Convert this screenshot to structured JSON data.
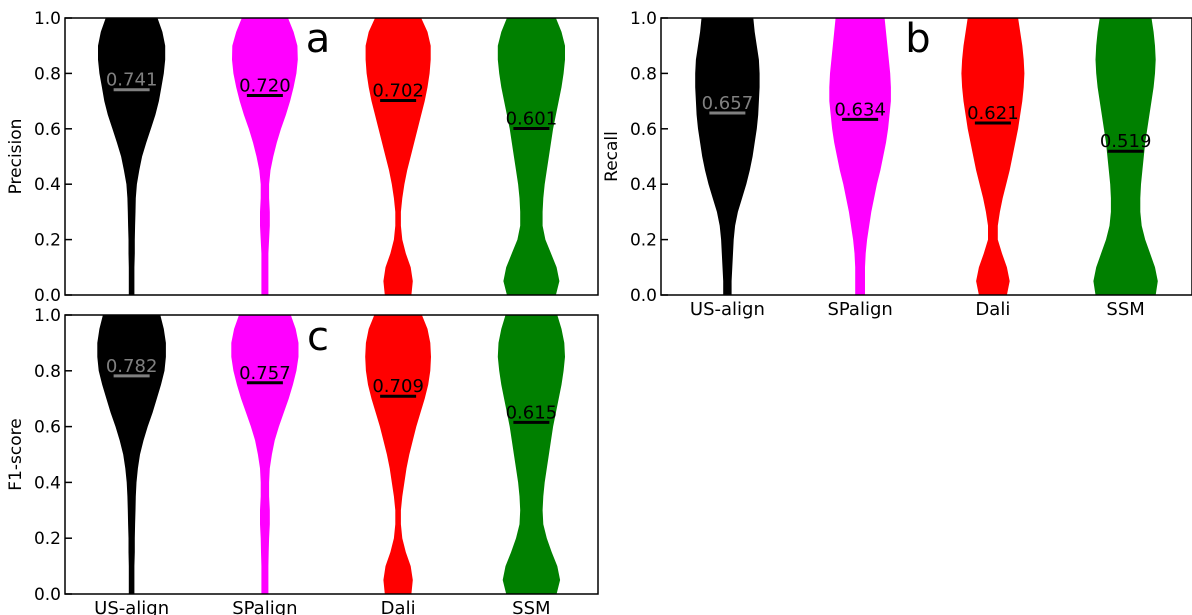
{
  "chart_data": [
    {
      "panel": "a",
      "type": "violin",
      "ylabel": "Precision",
      "ylim": [
        0,
        1
      ],
      "yticks": [
        "0.0",
        "0.2",
        "0.4",
        "0.6",
        "0.8",
        "1.0"
      ],
      "categories": [
        "US-align",
        "SPalign",
        "Dali",
        "SSM"
      ],
      "show_xticklabels": false,
      "colors": [
        "#000000",
        "#ff00ff",
        "#ff0000",
        "#008000"
      ],
      "means": [
        0.741,
        0.72,
        0.702,
        0.601
      ],
      "mean_labels": [
        "0.741",
        "0.720",
        "0.702",
        "0.601"
      ],
      "mean_label_colors": [
        "#808080",
        "#000000",
        "#000000",
        "#000000"
      ],
      "mean_line_colors": [
        "#808080",
        "#000000",
        "#000000",
        "#000000"
      ],
      "profile_y": [
        0.0,
        0.05,
        0.1,
        0.15,
        0.2,
        0.25,
        0.3,
        0.35,
        0.4,
        0.45,
        0.5,
        0.55,
        0.6,
        0.65,
        0.7,
        0.75,
        0.8,
        0.85,
        0.9,
        0.95,
        1.0
      ],
      "violin_widths": [
        [
          0.08,
          0.08,
          0.08,
          0.09,
          0.09,
          0.1,
          0.11,
          0.12,
          0.15,
          0.22,
          0.3,
          0.42,
          0.55,
          0.68,
          0.78,
          0.85,
          0.92,
          0.96,
          0.96,
          0.88,
          0.74
        ],
        [
          0.1,
          0.1,
          0.1,
          0.1,
          0.12,
          0.14,
          0.14,
          0.12,
          0.12,
          0.16,
          0.24,
          0.34,
          0.46,
          0.6,
          0.72,
          0.82,
          0.9,
          0.94,
          0.93,
          0.82,
          0.66
        ],
        [
          0.38,
          0.42,
          0.36,
          0.22,
          0.12,
          0.08,
          0.08,
          0.12,
          0.18,
          0.26,
          0.36,
          0.46,
          0.56,
          0.66,
          0.76,
          0.84,
          0.9,
          0.93,
          0.93,
          0.84,
          0.66
        ],
        [
          0.7,
          0.8,
          0.72,
          0.56,
          0.4,
          0.32,
          0.32,
          0.34,
          0.38,
          0.44,
          0.5,
          0.56,
          0.62,
          0.7,
          0.78,
          0.86,
          0.92,
          0.96,
          0.96,
          0.86,
          0.7
        ]
      ]
    },
    {
      "panel": "b",
      "type": "violin",
      "ylabel": "Recall",
      "ylim": [
        0,
        1
      ],
      "yticks": [
        "0.0",
        "0.2",
        "0.4",
        "0.6",
        "0.8",
        "1.0"
      ],
      "categories": [
        "US-align",
        "SPalign",
        "Dali",
        "SSM"
      ],
      "show_xticklabels": true,
      "colors": [
        "#000000",
        "#ff00ff",
        "#ff0000",
        "#008000"
      ],
      "means": [
        0.657,
        0.634,
        0.621,
        0.519
      ],
      "mean_labels": [
        "0.657",
        "0.634",
        "0.621",
        "0.519"
      ],
      "mean_label_colors": [
        "#808080",
        "#000000",
        "#000000",
        "#000000"
      ],
      "mean_line_colors": [
        "#808080",
        "#000000",
        "#000000",
        "#000000"
      ],
      "profile_y": [
        0.0,
        0.05,
        0.1,
        0.15,
        0.2,
        0.25,
        0.3,
        0.35,
        0.4,
        0.45,
        0.5,
        0.55,
        0.6,
        0.65,
        0.7,
        0.75,
        0.8,
        0.85,
        0.9,
        0.95,
        1.0
      ],
      "violin_widths": [
        [
          0.12,
          0.12,
          0.14,
          0.16,
          0.18,
          0.22,
          0.3,
          0.42,
          0.54,
          0.64,
          0.72,
          0.78,
          0.84,
          0.88,
          0.9,
          0.92,
          0.92,
          0.9,
          0.84,
          0.78,
          0.74
        ],
        [
          0.14,
          0.14,
          0.14,
          0.16,
          0.2,
          0.26,
          0.32,
          0.4,
          0.48,
          0.58,
          0.66,
          0.74,
          0.8,
          0.84,
          0.88,
          0.88,
          0.86,
          0.82,
          0.78,
          0.74,
          0.7
        ],
        [
          0.4,
          0.48,
          0.4,
          0.26,
          0.14,
          0.14,
          0.2,
          0.28,
          0.38,
          0.48,
          0.56,
          0.64,
          0.72,
          0.78,
          0.84,
          0.88,
          0.9,
          0.88,
          0.84,
          0.78,
          0.72
        ],
        [
          0.86,
          0.92,
          0.84,
          0.7,
          0.56,
          0.46,
          0.42,
          0.42,
          0.44,
          0.48,
          0.52,
          0.56,
          0.62,
          0.68,
          0.74,
          0.8,
          0.84,
          0.86,
          0.84,
          0.8,
          0.74
        ]
      ]
    },
    {
      "panel": "c",
      "type": "violin",
      "ylabel": "F1-score",
      "ylim": [
        0,
        1
      ],
      "yticks": [
        "0.0",
        "0.2",
        "0.4",
        "0.6",
        "0.8",
        "1.0"
      ],
      "categories": [
        "US-align",
        "SPalign",
        "Dali",
        "SSM"
      ],
      "show_xticklabels": true,
      "colors": [
        "#000000",
        "#ff00ff",
        "#ff0000",
        "#008000"
      ],
      "means": [
        0.782,
        0.757,
        0.709,
        0.615
      ],
      "mean_labels": [
        "0.782",
        "0.757",
        "0.709",
        "0.615"
      ],
      "mean_label_colors": [
        "#808080",
        "#000000",
        "#000000",
        "#000000"
      ],
      "mean_line_colors": [
        "#808080",
        "#000000",
        "#000000",
        "#000000"
      ],
      "profile_y": [
        0.0,
        0.05,
        0.1,
        0.15,
        0.2,
        0.25,
        0.3,
        0.35,
        0.4,
        0.45,
        0.5,
        0.55,
        0.6,
        0.65,
        0.7,
        0.75,
        0.8,
        0.85,
        0.9,
        0.95,
        1.0
      ],
      "violin_widths": [
        [
          0.08,
          0.08,
          0.08,
          0.09,
          0.09,
          0.1,
          0.11,
          0.12,
          0.14,
          0.18,
          0.24,
          0.34,
          0.46,
          0.6,
          0.72,
          0.84,
          0.94,
          0.98,
          0.98,
          0.92,
          0.82
        ],
        [
          0.1,
          0.1,
          0.1,
          0.11,
          0.12,
          0.14,
          0.14,
          0.12,
          0.12,
          0.14,
          0.2,
          0.28,
          0.4,
          0.54,
          0.68,
          0.8,
          0.9,
          0.96,
          0.96,
          0.88,
          0.74
        ],
        [
          0.38,
          0.42,
          0.36,
          0.22,
          0.12,
          0.08,
          0.08,
          0.12,
          0.18,
          0.24,
          0.32,
          0.42,
          0.52,
          0.64,
          0.76,
          0.86,
          0.92,
          0.94,
          0.92,
          0.84,
          0.68
        ],
        [
          0.72,
          0.82,
          0.74,
          0.58,
          0.44,
          0.34,
          0.32,
          0.34,
          0.38,
          0.44,
          0.5,
          0.56,
          0.62,
          0.7,
          0.78,
          0.86,
          0.92,
          0.96,
          0.94,
          0.86,
          0.74
        ]
      ]
    }
  ]
}
